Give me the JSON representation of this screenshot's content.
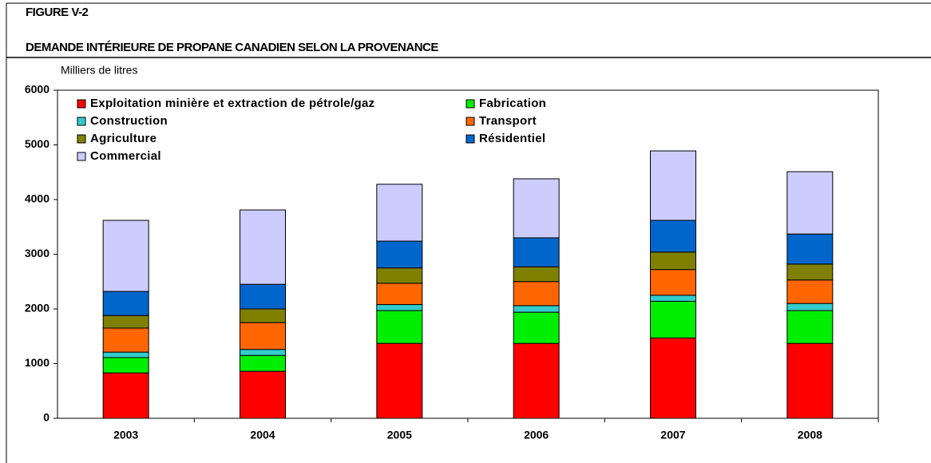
{
  "chart_data": {
    "type": "stacked_bar",
    "figure_label": "FIGURE V-2",
    "title": "DEMANDE INTÉRIEURE DE PROPANE CANADIEN SELON LA PROVENANCE",
    "ylabel": "Milliers de litres",
    "categories": [
      "2003",
      "2004",
      "2005",
      "2006",
      "2007",
      "2008"
    ],
    "series": [
      {
        "name": "Exploitation minière et extraction de pétrole/gaz",
        "color": "#ff0000",
        "values": [
          830,
          860,
          1370,
          1370,
          1470,
          1370
        ]
      },
      {
        "name": "Fabrication",
        "color": "#00ee00",
        "values": [
          280,
          290,
          600,
          570,
          670,
          600
        ]
      },
      {
        "name": "Construction",
        "color": "#33cccc",
        "values": [
          100,
          110,
          110,
          120,
          110,
          130
        ]
      },
      {
        "name": "Transport",
        "color": "#ff6600",
        "values": [
          440,
          490,
          390,
          440,
          470,
          430
        ]
      },
      {
        "name": "Agriculture",
        "color": "#808000",
        "values": [
          230,
          250,
          280,
          270,
          320,
          290
        ]
      },
      {
        "name": "Résidentiel",
        "color": "#0066cc",
        "values": [
          440,
          450,
          490,
          530,
          580,
          550
        ]
      },
      {
        "name": "Commercial",
        "color": "#ccccff",
        "values": [
          1300,
          1360,
          1040,
          1080,
          1270,
          1140
        ]
      }
    ],
    "ylim": [
      0,
      6000
    ],
    "yticks": [
      0,
      1000,
      2000,
      3000,
      4000,
      5000,
      6000
    ]
  }
}
